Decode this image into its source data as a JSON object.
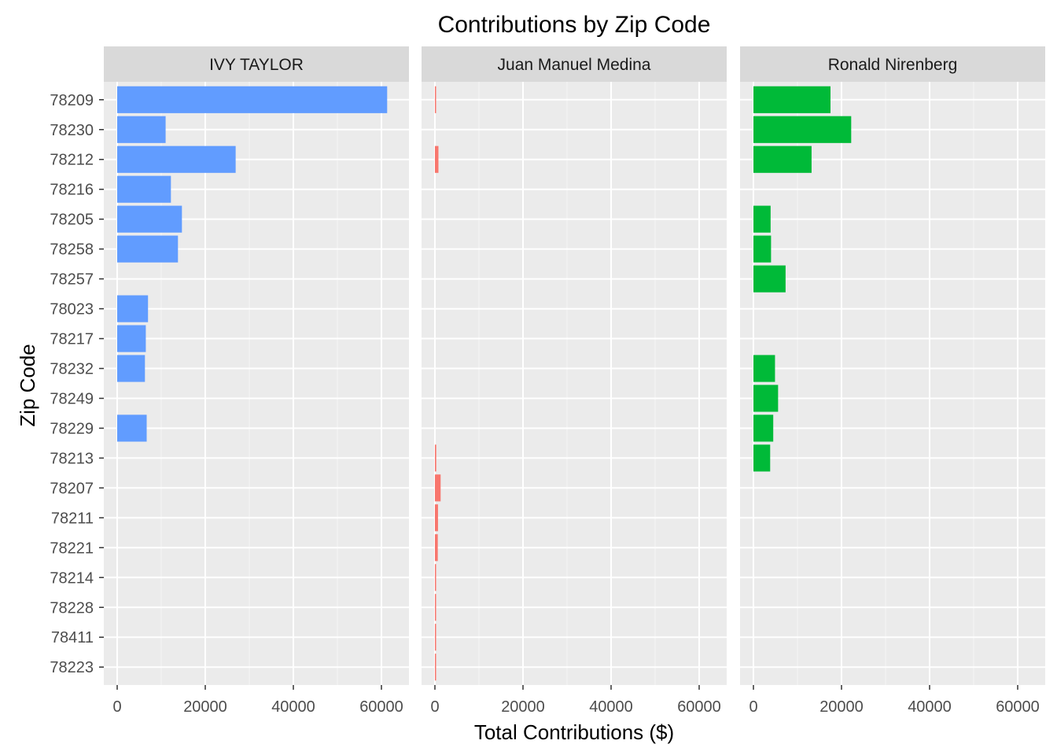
{
  "chart_data": {
    "type": "bar",
    "orientation": "horizontal",
    "title": "Contributions by Zip Code",
    "xlabel": "Total Contributions ($)",
    "ylabel": "Zip Code",
    "xlim": [
      0,
      64000
    ],
    "x_ticks": [
      0,
      20000,
      40000,
      60000
    ],
    "x_tick_labels": [
      "0",
      "20000",
      "40000",
      "60000"
    ],
    "categories": [
      "78209",
      "78230",
      "78212",
      "78216",
      "78205",
      "78258",
      "78257",
      "78023",
      "78217",
      "78232",
      "78249",
      "78229",
      "78213",
      "78207",
      "78211",
      "78221",
      "78214",
      "78228",
      "78411",
      "78223"
    ],
    "grid": true,
    "legend": "none",
    "panels": [
      {
        "name": "IVY TAYLOR",
        "color": "#619CFF",
        "values": [
          61300,
          11000,
          26900,
          12200,
          14700,
          13800,
          null,
          7000,
          6500,
          6300,
          null,
          6700,
          null,
          null,
          null,
          null,
          null,
          null,
          null,
          null
        ]
      },
      {
        "name": "Juan Manuel Medina",
        "color": "#F8766D",
        "values": [
          250,
          null,
          800,
          null,
          null,
          null,
          null,
          null,
          null,
          null,
          null,
          null,
          300,
          1300,
          700,
          650,
          200,
          200,
          150,
          150
        ]
      },
      {
        "name": "Ronald Nirenberg",
        "color": "#00BA38",
        "values": [
          17500,
          22200,
          13200,
          null,
          3900,
          4000,
          7300,
          null,
          null,
          4900,
          5600,
          4500,
          3800,
          null,
          null,
          null,
          null,
          null,
          null,
          null
        ]
      }
    ]
  }
}
